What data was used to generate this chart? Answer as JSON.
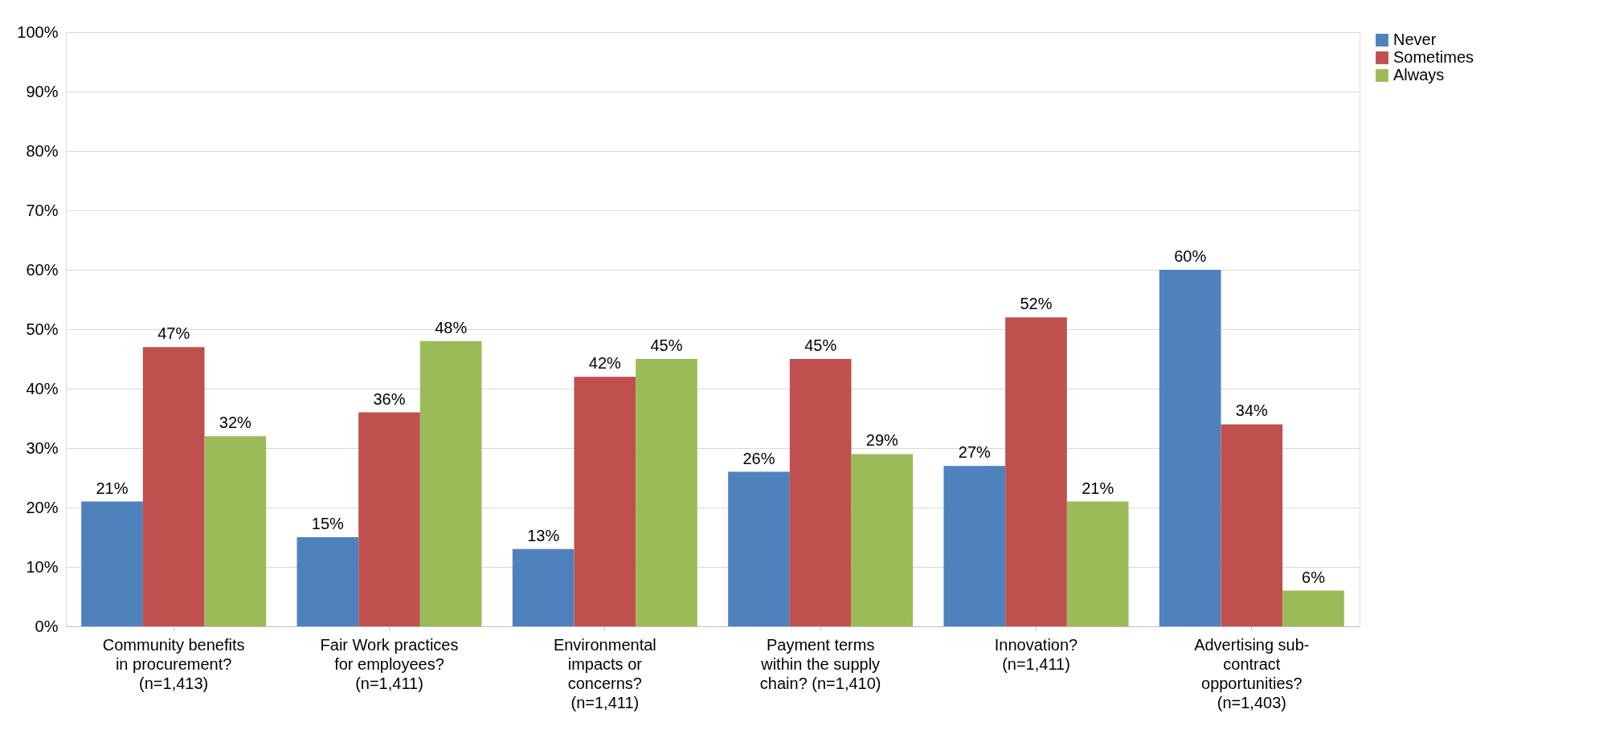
{
  "chart_data": {
    "type": "bar",
    "categories": [
      "Community benefits\nin procurement?\n(n=1,413)",
      "Fair Work practices\nfor employees?\n(n=1,411)",
      "Environmental\nimpacts or\nconcerns?\n(n=1,411)",
      "Payment terms\nwithin the supply\nchain? (n=1,410)",
      "Innovation?\n(n=1,411)",
      "Advertising sub-\ncontract\nopportunities?\n(n=1,403)"
    ],
    "series": [
      {
        "name": "Never",
        "color": "#4f81bd",
        "values": [
          21,
          15,
          13,
          26,
          27,
          60
        ],
        "value_labels": [
          "21%",
          "15%",
          "13%",
          "26%",
          "27%",
          "60%"
        ]
      },
      {
        "name": "Sometimes",
        "color": "#c0504d",
        "values": [
          47,
          36,
          42,
          45,
          52,
          34
        ],
        "value_labels": [
          "47%",
          "36%",
          "42%",
          "45%",
          "52%",
          "34%"
        ]
      },
      {
        "name": "Always",
        "color": "#9bbb59",
        "values": [
          32,
          48,
          45,
          29,
          21,
          6
        ],
        "value_labels": [
          "32%",
          "48%",
          "45%",
          "29%",
          "21%",
          "6%"
        ]
      }
    ],
    "ylim": [
      0,
      100
    ],
    "yticks": [
      {
        "value": 0,
        "label": "0%"
      },
      {
        "value": 10,
        "label": "10%"
      },
      {
        "value": 20,
        "label": "20%"
      },
      {
        "value": 30,
        "label": "30%"
      },
      {
        "value": 40,
        "label": "40%"
      },
      {
        "value": 50,
        "label": "50%"
      },
      {
        "value": 60,
        "label": "60%"
      },
      {
        "value": 70,
        "label": "70%"
      },
      {
        "value": 80,
        "label": "80%"
      },
      {
        "value": 90,
        "label": "90%"
      },
      {
        "value": 100,
        "label": "100%"
      }
    ],
    "grid": "y",
    "legend": "right"
  }
}
